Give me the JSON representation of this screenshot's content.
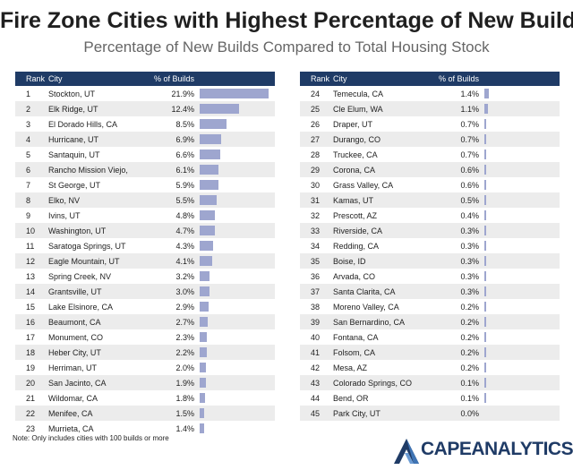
{
  "chart_data": {
    "type": "table",
    "title": "Fire Zone Cities with Highest Percentage of New Builds",
    "subtitle": "Percentage of New Builds Compared to Total Housing Stock",
    "columns": [
      "Rank",
      "City",
      "% of Builds"
    ],
    "xlim": [
      0,
      21.9
    ],
    "bar_color": "#9ea6cf",
    "header_color": "#1f3b66",
    "rows": [
      {
        "rank": "1",
        "city": "Stockton, UT",
        "pct_label": "21.9%",
        "value": 21.9
      },
      {
        "rank": "2",
        "city": "Elk Ridge, UT",
        "pct_label": "12.4%",
        "value": 12.4
      },
      {
        "rank": "3",
        "city": "El Dorado Hills, CA",
        "pct_label": "8.5%",
        "value": 8.5
      },
      {
        "rank": "4",
        "city": "Hurricane, UT",
        "pct_label": "6.9%",
        "value": 6.9
      },
      {
        "rank": "5",
        "city": "Santaquin, UT",
        "pct_label": "6.6%",
        "value": 6.6
      },
      {
        "rank": "6",
        "city": "Rancho Mission Viejo,",
        "pct_label": "6.1%",
        "value": 6.1
      },
      {
        "rank": "7",
        "city": "St George, UT",
        "pct_label": "5.9%",
        "value": 5.9
      },
      {
        "rank": "8",
        "city": "Elko, NV",
        "pct_label": "5.5%",
        "value": 5.5
      },
      {
        "rank": "9",
        "city": "Ivins, UT",
        "pct_label": "4.8%",
        "value": 4.8
      },
      {
        "rank": "10",
        "city": "Washington, UT",
        "pct_label": "4.7%",
        "value": 4.7
      },
      {
        "rank": "11",
        "city": "Saratoga Springs, UT",
        "pct_label": "4.3%",
        "value": 4.3
      },
      {
        "rank": "12",
        "city": "Eagle Mountain, UT",
        "pct_label": "4.1%",
        "value": 4.1
      },
      {
        "rank": "13",
        "city": "Spring Creek, NV",
        "pct_label": "3.2%",
        "value": 3.2
      },
      {
        "rank": "14",
        "city": "Grantsville, UT",
        "pct_label": "3.0%",
        "value": 3.0
      },
      {
        "rank": "15",
        "city": "Lake Elsinore, CA",
        "pct_label": "2.9%",
        "value": 2.9
      },
      {
        "rank": "16",
        "city": "Beaumont, CA",
        "pct_label": "2.7%",
        "value": 2.7
      },
      {
        "rank": "17",
        "city": "Monument, CO",
        "pct_label": "2.3%",
        "value": 2.3
      },
      {
        "rank": "18",
        "city": "Heber City, UT",
        "pct_label": "2.2%",
        "value": 2.2
      },
      {
        "rank": "19",
        "city": "Herriman, UT",
        "pct_label": "2.0%",
        "value": 2.0
      },
      {
        "rank": "20",
        "city": "San Jacinto, CA",
        "pct_label": "1.9%",
        "value": 1.9
      },
      {
        "rank": "21",
        "city": "Wildomar, CA",
        "pct_label": "1.8%",
        "value": 1.8
      },
      {
        "rank": "22",
        "city": "Menifee, CA",
        "pct_label": "1.5%",
        "value": 1.5
      },
      {
        "rank": "23",
        "city": "Murrieta, CA",
        "pct_label": "1.4%",
        "value": 1.4
      },
      {
        "rank": "24",
        "city": "Temecula, CA",
        "pct_label": "1.4%",
        "value": 1.4
      },
      {
        "rank": "25",
        "city": "Cle Elum, WA",
        "pct_label": "1.1%",
        "value": 1.1
      },
      {
        "rank": "26",
        "city": "Draper, UT",
        "pct_label": "0.7%",
        "value": 0.7
      },
      {
        "rank": "27",
        "city": "Durango, CO",
        "pct_label": "0.7%",
        "value": 0.7
      },
      {
        "rank": "28",
        "city": "Truckee, CA",
        "pct_label": "0.7%",
        "value": 0.7
      },
      {
        "rank": "29",
        "city": "Corona, CA",
        "pct_label": "0.6%",
        "value": 0.6
      },
      {
        "rank": "30",
        "city": "Grass Valley, CA",
        "pct_label": "0.6%",
        "value": 0.6
      },
      {
        "rank": "31",
        "city": "Kamas, UT",
        "pct_label": "0.5%",
        "value": 0.5
      },
      {
        "rank": "32",
        "city": "Prescott, AZ",
        "pct_label": "0.4%",
        "value": 0.4
      },
      {
        "rank": "33",
        "city": "Riverside, CA",
        "pct_label": "0.3%",
        "value": 0.3
      },
      {
        "rank": "34",
        "city": "Redding, CA",
        "pct_label": "0.3%",
        "value": 0.3
      },
      {
        "rank": "35",
        "city": "Boise, ID",
        "pct_label": "0.3%",
        "value": 0.3
      },
      {
        "rank": "36",
        "city": "Arvada, CO",
        "pct_label": "0.3%",
        "value": 0.3
      },
      {
        "rank": "37",
        "city": "Santa Clarita, CA",
        "pct_label": "0.3%",
        "value": 0.3
      },
      {
        "rank": "38",
        "city": "Moreno Valley, CA",
        "pct_label": "0.2%",
        "value": 0.2
      },
      {
        "rank": "39",
        "city": "San Bernardino, CA",
        "pct_label": "0.2%",
        "value": 0.2
      },
      {
        "rank": "40",
        "city": "Fontana, CA",
        "pct_label": "0.2%",
        "value": 0.2
      },
      {
        "rank": "41",
        "city": "Folsom, CA",
        "pct_label": "0.2%",
        "value": 0.2
      },
      {
        "rank": "42",
        "city": "Mesa, AZ",
        "pct_label": "0.2%",
        "value": 0.2
      },
      {
        "rank": "43",
        "city": "Colorado Springs, CO",
        "pct_label": "0.1%",
        "value": 0.1
      },
      {
        "rank": "44",
        "city": "Bend, OR",
        "pct_label": "0.1%",
        "value": 0.1
      },
      {
        "rank": "45",
        "city": "Park City, UT",
        "pct_label": "0.0%",
        "value": 0.0
      }
    ]
  },
  "note": "Note: Only includes cities with 100 builds or more",
  "logo": {
    "text": "CAPEANALYTICS",
    "color": "#1f3b66"
  }
}
